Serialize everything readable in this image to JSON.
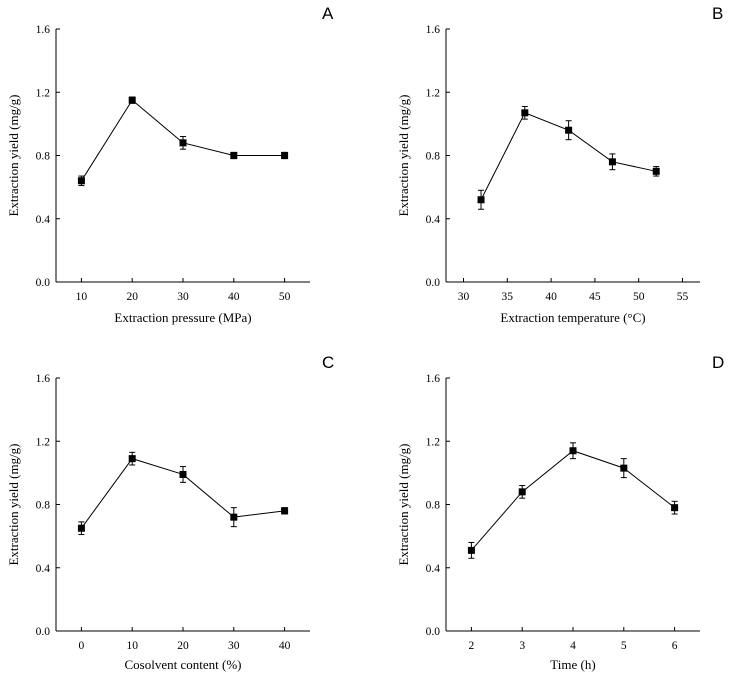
{
  "chart_data": [
    {
      "panel": "A",
      "type": "line",
      "xlabel": "Extraction pressure (MPa)",
      "ylabel": "Extraction yield (mg/g)",
      "xlim": [
        5,
        55
      ],
      "ylim": [
        0.0,
        1.6
      ],
      "xticks": [
        10,
        20,
        30,
        40,
        50
      ],
      "xtick_labels": [
        "10",
        "20",
        "30",
        "40",
        "50"
      ],
      "yticks": [
        0.0,
        0.4,
        0.8,
        1.2,
        1.6
      ],
      "ytick_labels": [
        "0.0",
        "0.4",
        "0.8",
        "1.2",
        "1.6"
      ],
      "x": [
        10,
        20,
        30,
        40,
        50
      ],
      "y": [
        0.64,
        1.15,
        0.88,
        0.8,
        0.8
      ],
      "err": [
        0.03,
        0.02,
        0.04,
        0.02,
        0.02
      ]
    },
    {
      "panel": "B",
      "type": "line",
      "xlabel": "Extraction temperature (°C)",
      "ylabel": "Extraction yield (mg/g)",
      "xlim": [
        28,
        57
      ],
      "ylim": [
        0.0,
        1.6
      ],
      "xticks": [
        30,
        35,
        40,
        45,
        50,
        55
      ],
      "xtick_labels": [
        "30",
        "35",
        "40",
        "45",
        "50",
        "55"
      ],
      "yticks": [
        0.0,
        0.4,
        0.8,
        1.2,
        1.6
      ],
      "ytick_labels": [
        "0.0",
        "0.4",
        "0.8",
        "1.2",
        "1.6"
      ],
      "x": [
        32,
        37,
        42,
        47,
        52
      ],
      "y": [
        0.52,
        1.07,
        0.96,
        0.76,
        0.7
      ],
      "err": [
        0.06,
        0.04,
        0.06,
        0.05,
        0.03
      ]
    },
    {
      "panel": "C",
      "type": "line",
      "xlabel": "Cosolvent content (%)",
      "ylabel": "Extraction yield (mg/g)",
      "xlim": [
        -5,
        45
      ],
      "ylim": [
        0.0,
        1.6
      ],
      "xticks": [
        0,
        10,
        20,
        30,
        40
      ],
      "xtick_labels": [
        "0",
        "10",
        "20",
        "30",
        "40"
      ],
      "yticks": [
        0.0,
        0.4,
        0.8,
        1.2,
        1.6
      ],
      "ytick_labels": [
        "0.0",
        "0.4",
        "0.8",
        "1.2",
        "1.6"
      ],
      "x": [
        0,
        10,
        20,
        30,
        40
      ],
      "y": [
        0.65,
        1.09,
        0.99,
        0.72,
        0.76
      ],
      "err": [
        0.04,
        0.04,
        0.05,
        0.06,
        0.02
      ]
    },
    {
      "panel": "D",
      "type": "line",
      "xlabel": "Time (h)",
      "ylabel": "Extraction yield (mg/g)",
      "xlim": [
        1.5,
        6.5
      ],
      "ylim": [
        0.0,
        1.6
      ],
      "xticks": [
        2,
        3,
        4,
        5,
        6
      ],
      "xtick_labels": [
        "2",
        "3",
        "4",
        "5",
        "6"
      ],
      "yticks": [
        0.0,
        0.4,
        0.8,
        1.2,
        1.6
      ],
      "ytick_labels": [
        "0.0",
        "0.4",
        "0.8",
        "1.2",
        "1.6"
      ],
      "x": [
        2,
        3,
        4,
        5,
        6
      ],
      "y": [
        0.51,
        0.88,
        1.14,
        1.03,
        0.78
      ],
      "err": [
        0.05,
        0.04,
        0.05,
        0.06,
        0.04
      ]
    }
  ]
}
